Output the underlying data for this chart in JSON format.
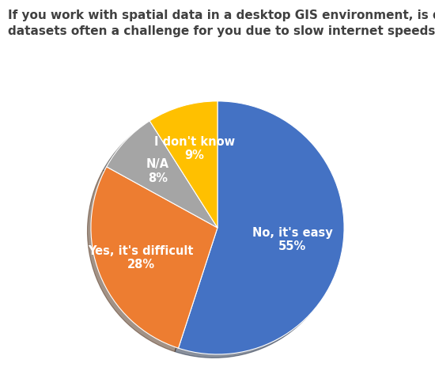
{
  "title_line1": "If you work with spatial data in a desktop GIS environment, is downloading large",
  "title_line2": "datasets often a challenge for you due to slow internet speeds or other factors?",
  "slices": [
    {
      "label": "No, it's easy",
      "pct": 55,
      "color": "#4472C4",
      "label_r": 0.6
    },
    {
      "label": "Yes, it's difficult",
      "pct": 28,
      "color": "#ED7D31",
      "label_r": 0.65
    },
    {
      "label": "N/A",
      "pct": 8,
      "color": "#A5A5A5",
      "label_r": 0.65
    },
    {
      "label": "I don't know",
      "pct": 9,
      "color": "#FFC000",
      "label_r": 0.65
    }
  ],
  "start_angle": 90,
  "background_color": "#FFFFFF",
  "title_fontsize": 11.0,
  "title_color": "#404040",
  "label_fontsize": 10.5,
  "label_color": "#FFFFFF",
  "shadow": true
}
